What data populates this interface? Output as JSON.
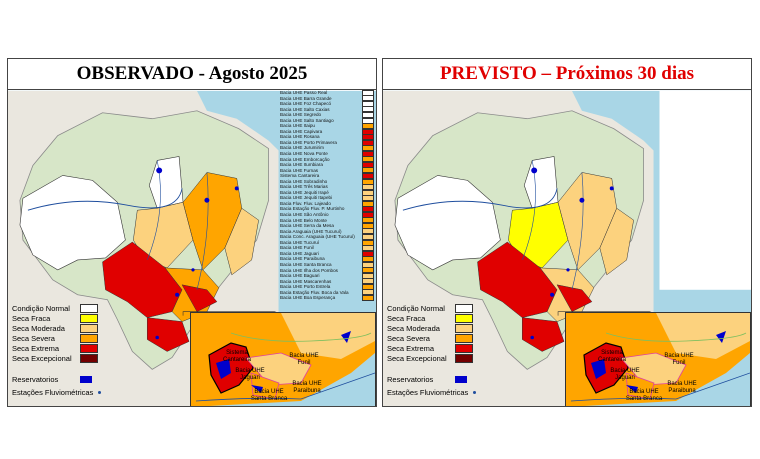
{
  "panels": [
    {
      "title": "OBSERVADO - Agosto 2025",
      "title_color": "#000000"
    },
    {
      "title": "PREVISTO – Próximos 30 dias",
      "title_color": "#e00000"
    }
  ],
  "legend": [
    {
      "label": "Condição Normal",
      "color": "#ffffff"
    },
    {
      "label": "Seca Fraca",
      "color": "#ffff00"
    },
    {
      "label": "Seca Moderada",
      "color": "#fcd27e"
    },
    {
      "label": "Seca Severa",
      "color": "#ffa500"
    },
    {
      "label": "Seca Extrema",
      "color": "#e00000"
    },
    {
      "label": "Seca Excepcional",
      "color": "#730000"
    }
  ],
  "legend_extra": {
    "reservoirs": "Reservatorios",
    "stations": "Estações Fluviométricas",
    "reservoir_color": "#0000cc",
    "station_color": "#1f4e9e"
  },
  "basins": [
    "Bacia UHE Passo Real",
    "Bacia UHE Barra Grande",
    "Bacia UHE Foz Chapecó",
    "Bacia UHE Salto Caxias",
    "Bacia UHE Segredo",
    "Bacia UHE Salto Santiago",
    "Bacia UHE Itaipu",
    "Bacia UHE Capivara",
    "Bacia UHE Rosana",
    "Bacia UHE Porto Primavera",
    "Bacia UHE Jurumirim",
    "Bacia UHE Nova Ponte",
    "Bacia UHE Emborcação",
    "Bacia UHE Itumbiara",
    "Bacia UHE Furnas",
    "Sistema Cantareira",
    "Bacia UHE Sobradinho",
    "Bacia UHE Três Marias",
    "Bacia UHE Jequiti Irapé",
    "Bacia UHE Jequiti Itapebi",
    "Bacia Fluv. Fluv. Lajeado",
    "Bacia Estação Fluv. P. Murtinho",
    "Bacia UHE São Antônio",
    "Bacia UHE Belo Monte",
    "Bacia UHE Serra da Mesa",
    "Bacia Araguaia (UHE Tucuruí)",
    "Bacia Conc. Araguaia (UHE Tucuruí)",
    "Bacia UHE Tucuruí",
    "Bacia UHE Funil",
    "Bacia UHE Jaguari",
    "Bacia UHE Paraibuna",
    "Bacia UHE Santa Branca",
    "Bacia UHE Ilha dos Pombos",
    "Bacia UHE Baguari",
    "Bacia UHE Mascarenhas",
    "Bacia UHE Porto Estrela",
    "Bacia Estação Fluv. Boca da Vala",
    "Bacia UHE Boa Esperança"
  ],
  "basin_colors": [
    "#ffffff",
    "#ffffff",
    "#ffffff",
    "#ffffff",
    "#ffffff",
    "#ffffff",
    "#ffa500",
    "#e00000",
    "#e00000",
    "#e00000",
    "#ffa500",
    "#e00000",
    "#ffa500",
    "#e00000",
    "#ffa500",
    "#e00000",
    "#ffa500",
    "#fcd27e",
    "#fcd27e",
    "#fcd27e",
    "#ffa500",
    "#e00000",
    "#e00000",
    "#ffa500",
    "#ffa500",
    "#fcd27e",
    "#fcd27e",
    "#ffa500",
    "#fcd27e",
    "#e00000",
    "#ffa500",
    "#fcd27e",
    "#ffa500",
    "#fcd27e",
    "#fcd27e",
    "#ffa500",
    "#fcd27e",
    "#ffa500"
  ],
  "inset_labels": [
    {
      "text": "Sistema Cantareira"
    },
    {
      "text": "Bacia UHE Jaguari"
    },
    {
      "text": "Bacia UHE Funil"
    },
    {
      "text": "Bacia UHE Paraibuna"
    },
    {
      "text": "Bacia UHE Santa Branca"
    }
  ]
}
